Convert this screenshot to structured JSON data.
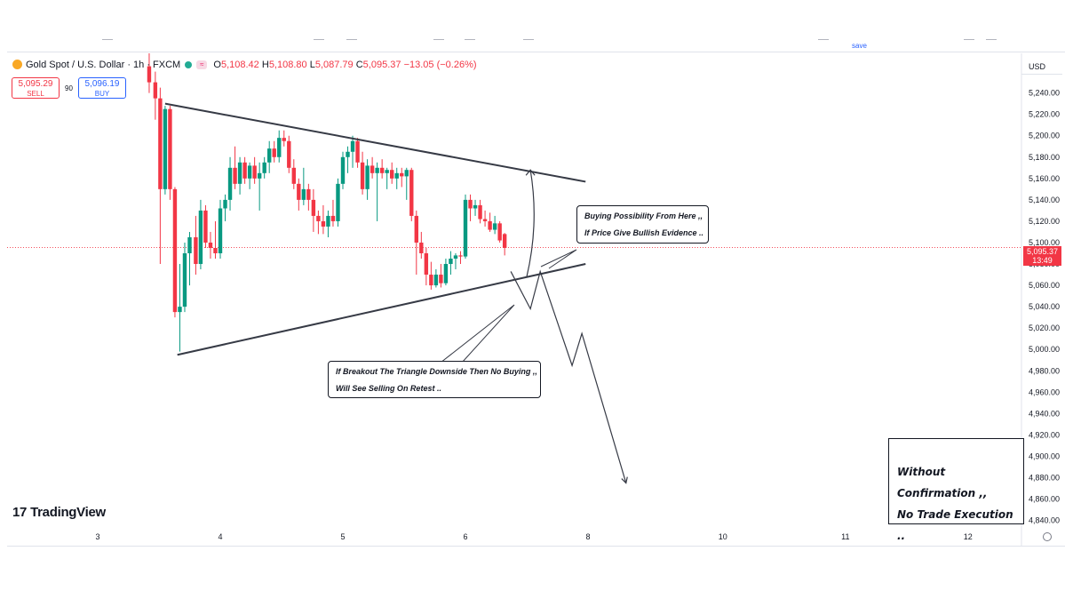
{
  "header": {
    "save_label": "save"
  },
  "legend": {
    "symbol": "Gold Spot / U.S. Dollar · 1h · FXCM",
    "open_key": "O",
    "open": "5,108.42",
    "high_key": "H",
    "high": "5,108.80",
    "low_key": "L",
    "low": "5,087.79",
    "close_key": "C",
    "close": "5,095.37",
    "change": "−13.05 (−0.26%)"
  },
  "trade": {
    "sell_price": "5,095.29",
    "sell_label": "SELL",
    "spread": "90",
    "buy_price": "5,096.19",
    "buy_label": "BUY"
  },
  "price_axis": {
    "currency": "USD",
    "current_price": "5,095.37",
    "countdown": "13:49"
  },
  "annotations": {
    "buy_line1": "Buying Possibility From Here ,,",
    "buy_line2": "If Price Give Bullish Evidence ..",
    "break_line1": "If Breakout The Triangle Downside Then No Buying ,,",
    "break_line2": "Will See Selling On Retest ..",
    "note_line1": "Without Confirmation ,,",
    "note_line2": "No Trade Execution .."
  },
  "branding": {
    "logo_mark": "17",
    "logo_text": "TradingView"
  },
  "colors": {
    "up": "#089981",
    "down": "#f23645",
    "line": "#363a45"
  },
  "chart_data": {
    "type": "candlestick",
    "y_ticks": [
      5240,
      5220,
      5200,
      5180,
      5160,
      5140,
      5120,
      5100,
      5080,
      5060,
      5040,
      5020,
      5000,
      4980,
      4960,
      4940,
      4920,
      4900,
      4880,
      4860,
      4840
    ],
    "y_tick_labels": [
      "5,240.00",
      "5,220.00",
      "5,200.00",
      "5,180.00",
      "5,160.00",
      "5,140.00",
      "5,120.00",
      "5,100.00",
      "5,080.00",
      "5,060.00",
      "5,040.00",
      "5,020.00",
      "5,000.00",
      "4,980.00",
      "4,960.00",
      "4,940.00",
      "4,920.00",
      "4,900.00",
      "4,880.00",
      "4,860.00",
      "4,840.00"
    ],
    "ylim": [
      4833,
      5258
    ],
    "x_ticks": [
      {
        "label": "3",
        "day": 3
      },
      {
        "label": "4",
        "day": 4
      },
      {
        "label": "5",
        "day": 5
      },
      {
        "label": "6",
        "day": 6
      },
      {
        "label": "8",
        "day": 7
      },
      {
        "label": "10",
        "day": 8.1
      },
      {
        "label": "11",
        "day": 9.1
      },
      {
        "label": "12",
        "day": 10.1
      }
    ],
    "current_price": 5095.37,
    "candles": [
      {
        "t": 3.42,
        "o": 5265,
        "h": 5280,
        "l": 5240,
        "c": 5250
      },
      {
        "t": 3.47,
        "o": 5250,
        "h": 5260,
        "l": 5215,
        "c": 5235
      },
      {
        "t": 3.51,
        "o": 5235,
        "h": 5245,
        "l": 5080,
        "c": 5150
      },
      {
        "t": 3.55,
        "o": 5150,
        "h": 5228,
        "l": 5145,
        "c": 5225
      },
      {
        "t": 3.59,
        "o": 5225,
        "h": 5228,
        "l": 5140,
        "c": 5150
      },
      {
        "t": 3.63,
        "o": 5150,
        "h": 5152,
        "l": 5030,
        "c": 5035
      },
      {
        "t": 3.67,
        "o": 5035,
        "h": 5080,
        "l": 4998,
        "c": 5040
      },
      {
        "t": 3.71,
        "o": 5040,
        "h": 5100,
        "l": 5035,
        "c": 5090
      },
      {
        "t": 3.75,
        "o": 5090,
        "h": 5110,
        "l": 5060,
        "c": 5105
      },
      {
        "t": 3.8,
        "o": 5105,
        "h": 5125,
        "l": 5070,
        "c": 5080
      },
      {
        "t": 3.84,
        "o": 5080,
        "h": 5140,
        "l": 5075,
        "c": 5130
      },
      {
        "t": 3.88,
        "o": 5130,
        "h": 5135,
        "l": 5095,
        "c": 5100
      },
      {
        "t": 3.92,
        "o": 5100,
        "h": 5110,
        "l": 5085,
        "c": 5095
      },
      {
        "t": 3.96,
        "o": 5095,
        "h": 5120,
        "l": 5085,
        "c": 5090
      },
      {
        "t": 4.0,
        "o": 5090,
        "h": 5140,
        "l": 5085,
        "c": 5132
      },
      {
        "t": 4.04,
        "o": 5132,
        "h": 5145,
        "l": 5120,
        "c": 5140
      },
      {
        "t": 4.08,
        "o": 5140,
        "h": 5180,
        "l": 5130,
        "c": 5170
      },
      {
        "t": 4.12,
        "o": 5170,
        "h": 5190,
        "l": 5150,
        "c": 5155
      },
      {
        "t": 4.16,
        "o": 5155,
        "h": 5180,
        "l": 5145,
        "c": 5175
      },
      {
        "t": 4.2,
        "o": 5175,
        "h": 5180,
        "l": 5155,
        "c": 5160
      },
      {
        "t": 4.24,
        "o": 5160,
        "h": 5175,
        "l": 5150,
        "c": 5172
      },
      {
        "t": 4.28,
        "o": 5172,
        "h": 5180,
        "l": 5155,
        "c": 5160
      },
      {
        "t": 4.32,
        "o": 5160,
        "h": 5175,
        "l": 5130,
        "c": 5165
      },
      {
        "t": 4.36,
        "o": 5165,
        "h": 5180,
        "l": 5160,
        "c": 5175
      },
      {
        "t": 4.4,
        "o": 5175,
        "h": 5195,
        "l": 5165,
        "c": 5188
      },
      {
        "t": 4.44,
        "o": 5188,
        "h": 5195,
        "l": 5175,
        "c": 5180
      },
      {
        "t": 4.48,
        "o": 5180,
        "h": 5205,
        "l": 5175,
        "c": 5198
      },
      {
        "t": 4.52,
        "o": 5198,
        "h": 5205,
        "l": 5190,
        "c": 5195
      },
      {
        "t": 4.56,
        "o": 5195,
        "h": 5200,
        "l": 5165,
        "c": 5170
      },
      {
        "t": 4.6,
        "o": 5170,
        "h": 5178,
        "l": 5150,
        "c": 5155
      },
      {
        "t": 4.64,
        "o": 5155,
        "h": 5160,
        "l": 5130,
        "c": 5140
      },
      {
        "t": 4.68,
        "o": 5140,
        "h": 5170,
        "l": 5135,
        "c": 5150
      },
      {
        "t": 4.72,
        "o": 5150,
        "h": 5155,
        "l": 5130,
        "c": 5140
      },
      {
        "t": 4.76,
        "o": 5140,
        "h": 5150,
        "l": 5110,
        "c": 5125
      },
      {
        "t": 4.8,
        "o": 5125,
        "h": 5130,
        "l": 5108,
        "c": 5120
      },
      {
        "t": 4.84,
        "o": 5120,
        "h": 5135,
        "l": 5108,
        "c": 5115
      },
      {
        "t": 4.88,
        "o": 5115,
        "h": 5130,
        "l": 5105,
        "c": 5125
      },
      {
        "t": 4.92,
        "o": 5125,
        "h": 5140,
        "l": 5115,
        "c": 5120
      },
      {
        "t": 4.96,
        "o": 5120,
        "h": 5160,
        "l": 5115,
        "c": 5155
      },
      {
        "t": 5.0,
        "o": 5155,
        "h": 5185,
        "l": 5150,
        "c": 5180
      },
      {
        "t": 5.04,
        "o": 5180,
        "h": 5190,
        "l": 5165,
        "c": 5185
      },
      {
        "t": 5.08,
        "o": 5185,
        "h": 5200,
        "l": 5170,
        "c": 5195
      },
      {
        "t": 5.12,
        "o": 5195,
        "h": 5198,
        "l": 5170,
        "c": 5175
      },
      {
        "t": 5.16,
        "o": 5175,
        "h": 5185,
        "l": 5145,
        "c": 5150
      },
      {
        "t": 5.2,
        "o": 5150,
        "h": 5178,
        "l": 5140,
        "c": 5172
      },
      {
        "t": 5.24,
        "o": 5172,
        "h": 5180,
        "l": 5160,
        "c": 5165
      },
      {
        "t": 5.28,
        "o": 5165,
        "h": 5175,
        "l": 5120,
        "c": 5170
      },
      {
        "t": 5.32,
        "o": 5170,
        "h": 5178,
        "l": 5160,
        "c": 5165
      },
      {
        "t": 5.36,
        "o": 5165,
        "h": 5170,
        "l": 5150,
        "c": 5168
      },
      {
        "t": 5.4,
        "o": 5168,
        "h": 5175,
        "l": 5155,
        "c": 5160
      },
      {
        "t": 5.44,
        "o": 5160,
        "h": 5170,
        "l": 5150,
        "c": 5165
      },
      {
        "t": 5.48,
        "o": 5165,
        "h": 5170,
        "l": 5152,
        "c": 5162
      },
      {
        "t": 5.52,
        "o": 5162,
        "h": 5170,
        "l": 5140,
        "c": 5168
      },
      {
        "t": 5.56,
        "o": 5168,
        "h": 5170,
        "l": 5120,
        "c": 5125
      },
      {
        "t": 5.6,
        "o": 5125,
        "h": 5130,
        "l": 5070,
        "c": 5100
      },
      {
        "t": 5.64,
        "o": 5100,
        "h": 5110,
        "l": 5085,
        "c": 5090
      },
      {
        "t": 5.68,
        "o": 5090,
        "h": 5095,
        "l": 5060,
        "c": 5070
      },
      {
        "t": 5.72,
        "o": 5070,
        "h": 5082,
        "l": 5056,
        "c": 5060
      },
      {
        "t": 5.76,
        "o": 5060,
        "h": 5075,
        "l": 5058,
        "c": 5070
      },
      {
        "t": 5.8,
        "o": 5070,
        "h": 5080,
        "l": 5058,
        "c": 5062
      },
      {
        "t": 5.84,
        "o": 5062,
        "h": 5085,
        "l": 5060,
        "c": 5080
      },
      {
        "t": 5.88,
        "o": 5080,
        "h": 5092,
        "l": 5070,
        "c": 5085
      },
      {
        "t": 5.92,
        "o": 5085,
        "h": 5090,
        "l": 5075,
        "c": 5088
      },
      {
        "t": 5.96,
        "o": 5088,
        "h": 5092,
        "l": 5080,
        "c": 5087
      },
      {
        "t": 6.0,
        "o": 5087,
        "h": 5145,
        "l": 5085,
        "c": 5140
      },
      {
        "t": 6.04,
        "o": 5140,
        "h": 5145,
        "l": 5120,
        "c": 5132
      },
      {
        "t": 6.08,
        "o": 5132,
        "h": 5140,
        "l": 5125,
        "c": 5135
      },
      {
        "t": 6.12,
        "o": 5135,
        "h": 5140,
        "l": 5118,
        "c": 5122
      },
      {
        "t": 6.16,
        "o": 5122,
        "h": 5130,
        "l": 5115,
        "c": 5120
      },
      {
        "t": 6.2,
        "o": 5120,
        "h": 5128,
        "l": 5110,
        "c": 5112
      },
      {
        "t": 6.24,
        "o": 5112,
        "h": 5125,
        "l": 5108,
        "c": 5118
      },
      {
        "t": 6.28,
        "o": 5118,
        "h": 5120,
        "l": 5100,
        "c": 5102
      },
      {
        "t": 6.32,
        "o": 5108,
        "h": 5109,
        "l": 5088,
        "c": 5095
      }
    ],
    "triangle": {
      "upper": [
        {
          "t": 3.55,
          "p": 5230
        },
        {
          "t": 6.98,
          "p": 5157
        }
      ],
      "lower": [
        {
          "t": 3.65,
          "p": 4995
        },
        {
          "t": 6.98,
          "p": 5080
        }
      ]
    },
    "scenarios": {
      "bullish_path": [
        {
          "t": 6.5,
          "p": 5068
        },
        {
          "t": 6.53,
          "p": 5168
        }
      ],
      "bearish_path": [
        {
          "t": 6.37,
          "p": 5073
        },
        {
          "t": 6.53,
          "p": 5038
        },
        {
          "t": 6.61,
          "p": 5073
        },
        {
          "t": 6.87,
          "p": 4985
        },
        {
          "t": 6.95,
          "p": 5015
        },
        {
          "t": 7.31,
          "p": 4875
        }
      ]
    }
  }
}
